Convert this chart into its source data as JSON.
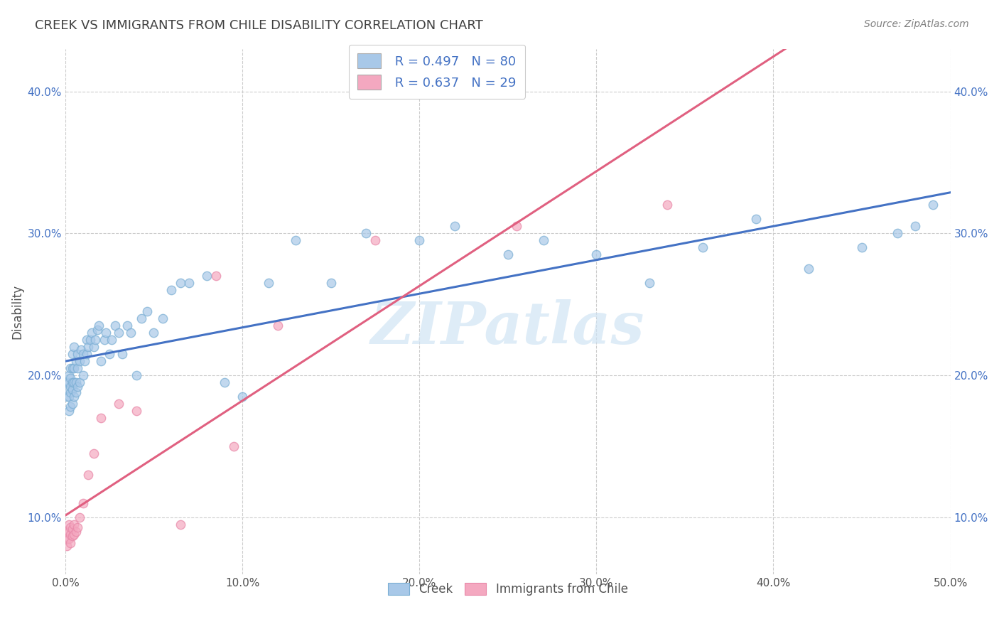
{
  "title": "CREEK VS IMMIGRANTS FROM CHILE DISABILITY CORRELATION CHART",
  "source": "Source: ZipAtlas.com",
  "ylabel": "Disability",
  "xlim": [
    0.0,
    0.5
  ],
  "ylim": [
    0.06,
    0.43
  ],
  "xtick_labels": [
    "0.0%",
    "10.0%",
    "20.0%",
    "30.0%",
    "40.0%",
    "50.0%"
  ],
  "xtick_vals": [
    0.0,
    0.1,
    0.2,
    0.3,
    0.4,
    0.5
  ],
  "ytick_labels": [
    "10.0%",
    "20.0%",
    "30.0%",
    "40.0%"
  ],
  "ytick_vals": [
    0.1,
    0.2,
    0.3,
    0.4
  ],
  "creek_color": "#a8c8e8",
  "chile_color": "#f4a8c0",
  "creek_edge_color": "#7bafd4",
  "chile_edge_color": "#e888a8",
  "creek_line_color": "#4472c4",
  "chile_line_color": "#e06080",
  "tick_label_color": "#4472c4",
  "watermark_text": "ZIPatlas",
  "watermark_color": "#d0e4f4",
  "legend_r_creek": "R = 0.497",
  "legend_n_creek": "N = 80",
  "legend_r_chile": "R = 0.637",
  "legend_n_chile": "N = 29",
  "creek_x": [
    0.001,
    0.001,
    0.001,
    0.002,
    0.002,
    0.002,
    0.002,
    0.003,
    0.003,
    0.003,
    0.003,
    0.003,
    0.004,
    0.004,
    0.004,
    0.004,
    0.004,
    0.005,
    0.005,
    0.005,
    0.005,
    0.006,
    0.006,
    0.006,
    0.007,
    0.007,
    0.007,
    0.008,
    0.008,
    0.009,
    0.01,
    0.01,
    0.011,
    0.012,
    0.012,
    0.013,
    0.014,
    0.015,
    0.016,
    0.017,
    0.018,
    0.019,
    0.02,
    0.022,
    0.023,
    0.025,
    0.026,
    0.028,
    0.03,
    0.032,
    0.035,
    0.037,
    0.04,
    0.043,
    0.046,
    0.05,
    0.055,
    0.06,
    0.065,
    0.07,
    0.08,
    0.09,
    0.1,
    0.115,
    0.13,
    0.15,
    0.17,
    0.2,
    0.22,
    0.25,
    0.27,
    0.3,
    0.33,
    0.36,
    0.39,
    0.42,
    0.45,
    0.47,
    0.48,
    0.49
  ],
  "creek_y": [
    0.185,
    0.19,
    0.195,
    0.175,
    0.185,
    0.195,
    0.2,
    0.178,
    0.188,
    0.192,
    0.198,
    0.205,
    0.18,
    0.19,
    0.195,
    0.205,
    0.215,
    0.185,
    0.195,
    0.205,
    0.22,
    0.188,
    0.195,
    0.21,
    0.192,
    0.205,
    0.215,
    0.195,
    0.21,
    0.218,
    0.2,
    0.215,
    0.21,
    0.215,
    0.225,
    0.22,
    0.225,
    0.23,
    0.22,
    0.225,
    0.232,
    0.235,
    0.21,
    0.225,
    0.23,
    0.215,
    0.225,
    0.235,
    0.23,
    0.215,
    0.235,
    0.23,
    0.2,
    0.24,
    0.245,
    0.23,
    0.24,
    0.26,
    0.265,
    0.265,
    0.27,
    0.195,
    0.185,
    0.265,
    0.295,
    0.265,
    0.3,
    0.295,
    0.305,
    0.285,
    0.295,
    0.285,
    0.265,
    0.29,
    0.31,
    0.275,
    0.29,
    0.3,
    0.305,
    0.32
  ],
  "chile_x": [
    0.001,
    0.001,
    0.001,
    0.002,
    0.002,
    0.002,
    0.003,
    0.003,
    0.003,
    0.004,
    0.004,
    0.005,
    0.005,
    0.006,
    0.007,
    0.008,
    0.01,
    0.013,
    0.016,
    0.02,
    0.03,
    0.04,
    0.065,
    0.085,
    0.095,
    0.12,
    0.175,
    0.255,
    0.34
  ],
  "chile_y": [
    0.08,
    0.085,
    0.09,
    0.085,
    0.09,
    0.095,
    0.082,
    0.088,
    0.093,
    0.087,
    0.092,
    0.088,
    0.095,
    0.09,
    0.093,
    0.1,
    0.11,
    0.13,
    0.145,
    0.17,
    0.18,
    0.175,
    0.095,
    0.27,
    0.15,
    0.235,
    0.295,
    0.305,
    0.32
  ],
  "bg_color": "#ffffff",
  "grid_color": "#cccccc",
  "title_color": "#404040",
  "source_color": "#808080"
}
